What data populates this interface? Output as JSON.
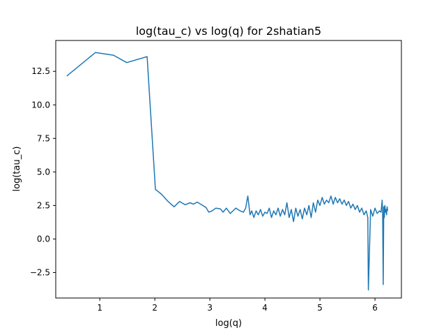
{
  "chart_data": {
    "type": "line",
    "title": "log(tau_c) vs log(q) for 2shatian5",
    "xlabel": "log(q)",
    "ylabel": "log(tau_c)",
    "xlim": [
      0.2,
      6.48
    ],
    "ylim": [
      -4.4,
      14.8
    ],
    "xticks": [
      1,
      2,
      3,
      4,
      5,
      6
    ],
    "xtick_labels": [
      "1",
      "2",
      "3",
      "4",
      "5",
      "6"
    ],
    "yticks": [
      -2.5,
      0.0,
      2.5,
      5.0,
      7.5,
      10.0,
      12.5
    ],
    "ytick_labels": [
      "−2.5",
      "0.0",
      "2.5",
      "5.0",
      "7.5",
      "10.0",
      "12.5"
    ],
    "grid": false,
    "series": [
      {
        "color": "#1f77b4",
        "x": [
          0.4,
          0.92,
          1.25,
          1.49,
          1.86,
          2.01,
          2.12,
          2.24,
          2.35,
          2.45,
          2.55,
          2.64,
          2.7,
          2.77,
          2.85,
          2.93,
          2.98,
          3.04,
          3.11,
          3.19,
          3.24,
          3.3,
          3.37,
          3.42,
          3.47,
          3.55,
          3.61,
          3.65,
          3.69,
          3.73,
          3.76,
          3.8,
          3.84,
          3.88,
          3.92,
          3.96,
          4.0,
          4.04,
          4.08,
          4.12,
          4.16,
          4.2,
          4.24,
          4.28,
          4.32,
          4.36,
          4.4,
          4.44,
          4.48,
          4.52,
          4.56,
          4.6,
          4.64,
          4.68,
          4.72,
          4.76,
          4.8,
          4.84,
          4.88,
          4.92,
          4.96,
          5.0,
          5.04,
          5.08,
          5.12,
          5.16,
          5.2,
          5.24,
          5.28,
          5.32,
          5.36,
          5.4,
          5.44,
          5.48,
          5.52,
          5.56,
          5.6,
          5.64,
          5.68,
          5.72,
          5.76,
          5.8,
          5.84,
          5.87,
          5.88,
          5.92,
          5.96,
          6.0,
          6.04,
          6.08,
          6.11,
          6.13,
          6.14,
          6.15,
          6.16,
          6.17,
          6.18,
          6.19,
          6.2,
          6.21,
          6.22,
          6.23
        ],
        "y": [
          12.15,
          13.9,
          13.7,
          13.15,
          13.6,
          3.7,
          3.35,
          2.8,
          2.4,
          2.8,
          2.55,
          2.7,
          2.6,
          2.75,
          2.55,
          2.35,
          2.0,
          2.1,
          2.3,
          2.25,
          2.0,
          2.3,
          1.9,
          2.1,
          2.3,
          2.1,
          2.0,
          2.3,
          3.2,
          1.8,
          2.1,
          1.6,
          2.1,
          1.8,
          2.2,
          1.7,
          2.0,
          1.9,
          2.3,
          1.6,
          2.1,
          1.8,
          2.3,
          1.7,
          2.2,
          1.8,
          2.7,
          1.6,
          2.2,
          1.3,
          2.3,
          1.7,
          2.2,
          1.5,
          2.3,
          1.8,
          2.5,
          1.6,
          2.7,
          2.0,
          2.9,
          2.5,
          3.1,
          2.6,
          2.9,
          2.7,
          3.2,
          2.6,
          3.1,
          2.7,
          3.0,
          2.6,
          2.9,
          2.5,
          2.8,
          2.3,
          2.6,
          2.2,
          2.5,
          2.0,
          2.3,
          1.8,
          2.1,
          1.6,
          -3.8,
          2.2,
          1.7,
          2.3,
          1.9,
          2.1,
          2.0,
          2.9,
          1.8,
          -3.4,
          2.4,
          1.6,
          2.5,
          2.0,
          2.2,
          1.8,
          2.4,
          2.1
        ]
      }
    ]
  }
}
